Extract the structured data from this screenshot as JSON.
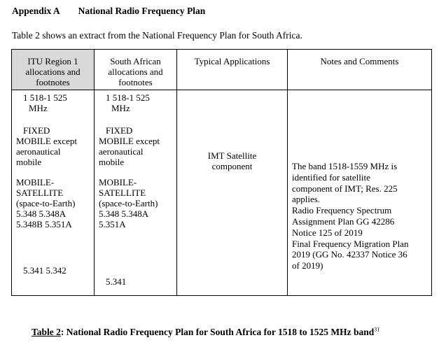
{
  "heading": {
    "appendix": "Appendix A",
    "title": "National Radio Frequency Plan"
  },
  "intro": "Table 2 shows an extract from the National Frequency Plan for South Africa.",
  "table": {
    "headers": [
      [
        "ITU Region 1",
        "allocations and",
        "footnotes"
      ],
      [
        "South African",
        "allocations and",
        "footnotes"
      ],
      [
        "Typical Applications"
      ],
      [
        "Notes and Comments"
      ]
    ],
    "itu": {
      "band": "1 518-1 525",
      "unit": "MHz",
      "fixed": "FIXED",
      "mobile": [
        "MOBILE except",
        "aeronautical",
        "mobile"
      ],
      "mobile_satellite": [
        "MOBILE-",
        "SATELLITE",
        "(space-to-Earth)",
        "5.348 5.348A",
        "5.348B 5.351A"
      ],
      "footnote": "5.341 5.342"
    },
    "sa": {
      "band": "1 518-1 525",
      "unit": "MHz",
      "fixed": "FIXED",
      "mobile": [
        "MOBILE except",
        "aeronautical",
        "mobile"
      ],
      "mobile_satellite": [
        "MOBILE-",
        "SATELLITE",
        "(space-to-Earth)",
        "5.348 5.348A",
        "5.351A"
      ],
      "footnote": "5.341"
    },
    "applications": [
      "IMT Satellite",
      "component"
    ],
    "notes": [
      "The band 1518-1559 MHz is",
      "identified for satellite",
      "component of IMT; Res. 225",
      "applies.",
      "Radio Frequency Spectrum",
      "Assignment Plan GG 42286",
      "Notice 125 of 2019",
      "Final Frequency Migration Plan",
      "2019 (GG No. 42337 Notice 36",
      "of 2019)"
    ]
  },
  "caption": {
    "label": "Table 2",
    "text": ": National Radio Frequency Plan for South Africa for 1518 to 1525 MHz band",
    "footnote_ref": "31"
  }
}
